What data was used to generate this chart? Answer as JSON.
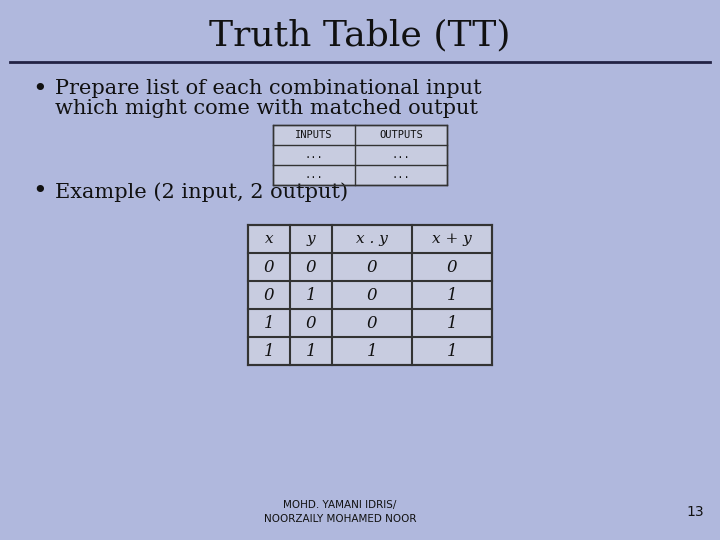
{
  "title": "Truth Table (TT)",
  "bg_color": "#b0b8dd",
  "title_fontsize": 26,
  "title_font": "serif",
  "bullet1_line1": "Prepare list of each combinational input",
  "bullet1_line2": "which might come with matched output",
  "bullet2": "Example (2 input, 2 output)",
  "footer": "MOHD. YAMANI IDRIS/\nNOORZAILY MOHAMED NOOR",
  "page_number": "13",
  "table1_headers": [
    "INPUTS",
    "OUTPUTS"
  ],
  "table1_rows": [
    [
      "...",
      "..."
    ],
    [
      "...",
      "..."
    ]
  ],
  "table2_headers": [
    "x",
    "y",
    "x . y",
    "x + y"
  ],
  "table2_rows": [
    [
      "0",
      "0",
      "0",
      "0"
    ],
    [
      "0",
      "1",
      "0",
      "1"
    ],
    [
      "1",
      "0",
      "0",
      "1"
    ],
    [
      "1",
      "1",
      "1",
      "1"
    ]
  ],
  "table_bg": "#c8cce0",
  "table_line_color": "#333333",
  "text_color": "#111111",
  "divider_color": "#222244"
}
